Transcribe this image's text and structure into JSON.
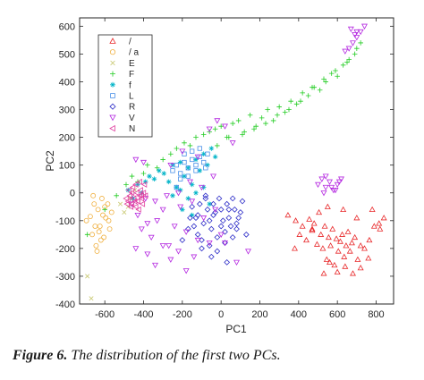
{
  "caption": {
    "label": "Figure 6.",
    "text": " The distribution of the first two PCs."
  },
  "chart_data": {
    "type": "scatter",
    "title": "",
    "xlabel": "PC1",
    "ylabel": "PC2",
    "xlim": [
      -730,
      890
    ],
    "ylim": [
      -400,
      630
    ],
    "xticks": [
      -600,
      -400,
      -200,
      0,
      200,
      400,
      600,
      800
    ],
    "yticks": [
      600,
      500,
      400,
      300,
      200,
      100,
      0,
      -100,
      -200,
      -300,
      -400
    ],
    "grid": false,
    "legend_position": "top-left",
    "series": [
      {
        "name": "/",
        "color": "#e8282a",
        "marker": "triangle-up",
        "x": [
          345,
          385,
          405,
          420,
          440,
          455,
          470,
          480,
          495,
          505,
          515,
          525,
          535,
          545,
          555,
          565,
          575,
          585,
          595,
          605,
          615,
          625,
          635,
          645,
          655,
          665,
          675,
          690,
          705,
          720,
          740,
          765,
          790,
          815,
          840,
          530,
          560,
          600,
          640,
          680,
          720,
          760,
          380,
          470,
          550,
          630,
          700,
          780,
          820
        ],
        "y": [
          -80,
          -100,
          -150,
          -120,
          -170,
          -95,
          -135,
          -110,
          -185,
          -70,
          -150,
          -200,
          -120,
          -240,
          -160,
          -190,
          -130,
          -260,
          -165,
          -210,
          -175,
          -150,
          -230,
          -190,
          -140,
          -210,
          -180,
          -160,
          -240,
          -190,
          -200,
          -170,
          -120,
          -110,
          -90,
          -290,
          -250,
          -285,
          -265,
          -290,
          -270,
          -235,
          -200,
          -130,
          -50,
          -60,
          -90,
          -60,
          -130
        ]
      },
      {
        "name": "/ a",
        "color": "#f0b040",
        "marker": "circle",
        "x": [
          -695,
          -675,
          -665,
          -655,
          -645,
          -635,
          -625,
          -615,
          -605,
          -595,
          -585,
          -575,
          -565,
          -660,
          -640,
          -620,
          -600,
          -580,
          -650,
          -630,
          -610
        ],
        "y": [
          -100,
          -85,
          -150,
          -40,
          -190,
          -60,
          -120,
          -20,
          -160,
          -90,
          -40,
          -130,
          -70,
          -10,
          -210,
          -170,
          -50,
          -100,
          -120,
          -140,
          -80
        ]
      },
      {
        "name": "E",
        "color": "#c8c870",
        "marker": "x",
        "x": [
          -670,
          -520,
          -470,
          -445,
          -500,
          -480,
          -690
        ],
        "y": [
          -380,
          -40,
          -20,
          10,
          -70,
          -50,
          -300
        ]
      },
      {
        "name": "F",
        "color": "#22cc22",
        "marker": "plus",
        "x": [
          -690,
          -600,
          -540,
          -490,
          -460,
          -430,
          -400,
          -380,
          -330,
          -300,
          -260,
          -230,
          -190,
          -160,
          -130,
          -90,
          -60,
          -30,
          0,
          30,
          60,
          90,
          120,
          150,
          180,
          210,
          240,
          270,
          300,
          330,
          360,
          390,
          420,
          450,
          480,
          510,
          540,
          570,
          600,
          630,
          660,
          690,
          720,
          -20,
          40,
          110,
          170,
          230,
          290,
          350,
          410,
          470,
          530,
          590,
          650,
          700
        ],
        "y": [
          -150,
          -60,
          -10,
          30,
          60,
          40,
          70,
          100,
          90,
          120,
          140,
          160,
          180,
          170,
          200,
          210,
          220,
          230,
          240,
          200,
          250,
          260,
          220,
          280,
          240,
          270,
          300,
          260,
          310,
          290,
          330,
          320,
          360,
          350,
          380,
          370,
          400,
          430,
          420,
          460,
          480,
          500,
          540,
          170,
          200,
          210,
          230,
          250,
          280,
          300,
          330,
          380,
          410,
          440,
          470,
          520
        ]
      },
      {
        "name": "f",
        "color": "#00b4c8",
        "marker": "star",
        "x": [
          -480,
          -455,
          -430,
          -410,
          -390,
          -370,
          -345,
          -320,
          -295,
          -270,
          -250,
          -230,
          -210,
          -190,
          -170,
          -150,
          -130,
          -110,
          -90,
          -70,
          -50,
          -30,
          -250,
          -210,
          -170,
          -130,
          -90,
          -60,
          -200,
          -150
        ],
        "y": [
          10,
          -20,
          30,
          0,
          40,
          60,
          50,
          80,
          70,
          40,
          100,
          20,
          110,
          60,
          90,
          30,
          120,
          80,
          140,
          100,
          160,
          130,
          -10,
          10,
          -20,
          0,
          20,
          -40,
          -60,
          -80
        ]
      },
      {
        "name": "L",
        "color": "#4a90e8",
        "marker": "square",
        "x": [
          -250,
          -230,
          -210,
          -190,
          -170,
          -150,
          -130,
          -110,
          -90,
          -70,
          -210,
          -170,
          -130,
          -190,
          -150,
          -110,
          -230,
          -80
        ],
        "y": [
          80,
          100,
          70,
          110,
          90,
          120,
          100,
          130,
          110,
          140,
          50,
          60,
          80,
          140,
          150,
          160,
          20,
          90
        ]
      },
      {
        "name": "R",
        "color": "#2e2ec8",
        "marker": "diamond",
        "x": [
          -150,
          -130,
          -110,
          -90,
          -70,
          -50,
          -30,
          -10,
          10,
          30,
          50,
          70,
          90,
          110,
          -140,
          -120,
          -100,
          -80,
          -60,
          -40,
          -20,
          0,
          20,
          40,
          60,
          80,
          100,
          -100,
          -60,
          -20,
          20,
          60,
          -80,
          -40,
          0,
          40,
          -120,
          80,
          130,
          -160,
          -200,
          -170,
          -50,
          30
        ],
        "y": [
          -50,
          -90,
          -40,
          -110,
          -60,
          -130,
          -70,
          -20,
          -100,
          -40,
          -120,
          -60,
          -90,
          -30,
          -120,
          -150,
          -170,
          -20,
          -100,
          -80,
          -160,
          -60,
          -140,
          -90,
          -20,
          -130,
          -70,
          -200,
          -190,
          -210,
          -180,
          -160,
          -10,
          -40,
          -120,
          -60,
          -80,
          -110,
          -150,
          -90,
          -170,
          -130,
          -230,
          -250
        ]
      },
      {
        "name": "V",
        "color": "#b428e0",
        "marker": "triangle-down",
        "x": [
          -460,
          -430,
          -410,
          -390,
          -360,
          -330,
          -300,
          -270,
          -240,
          -210,
          -180,
          -150,
          -120,
          -90,
          -60,
          -30,
          0,
          -380,
          -340,
          -300,
          -260,
          -220,
          -180,
          -140,
          -340,
          -280,
          -220,
          -160,
          -100,
          -40,
          20,
          80,
          140,
          -60,
          -20,
          20,
          60,
          500,
          520,
          540,
          560,
          580,
          600,
          620,
          540,
          570,
          530,
          590,
          610,
          -440,
          -400,
          -260,
          -200,
          -120,
          640,
          660,
          680,
          700,
          690,
          720,
          740,
          700,
          670,
          -380,
          -440
        ],
        "y": [
          -40,
          -80,
          -130,
          -20,
          -160,
          -100,
          -60,
          -190,
          -120,
          -50,
          -140,
          -30,
          -170,
          -90,
          -180,
          -60,
          -150,
          -220,
          -260,
          -190,
          -240,
          -210,
          -280,
          -230,
          -30,
          -10,
          0,
          40,
          20,
          60,
          -180,
          -250,
          -210,
          230,
          260,
          240,
          180,
          30,
          50,
          20,
          40,
          10,
          30,
          50,
          60,
          20,
          0,
          10,
          40,
          120,
          110,
          100,
          150,
          130,
          510,
          520,
          540,
          560,
          570,
          580,
          600,
          580,
          590,
          -110,
          -200
        ]
      },
      {
        "name": "N",
        "color": "#e040a0",
        "marker": "triangle-left",
        "x": [
          -490,
          -480,
          -470,
          -460,
          -450,
          -440,
          -430,
          -420,
          -410,
          -400,
          -390,
          -485,
          -465,
          -445,
          -425,
          -405,
          -475,
          -455,
          -435,
          -415,
          -395,
          -470,
          -450,
          -430,
          -410,
          -440,
          -420,
          -460
        ],
        "y": [
          -20,
          -30,
          -10,
          -40,
          -20,
          -50,
          -30,
          -10,
          -20,
          0,
          -10,
          -40,
          -50,
          -30,
          -60,
          -40,
          10,
          20,
          0,
          10,
          30,
          -10,
          -20,
          -30,
          -10,
          30,
          40,
          0
        ]
      }
    ]
  }
}
